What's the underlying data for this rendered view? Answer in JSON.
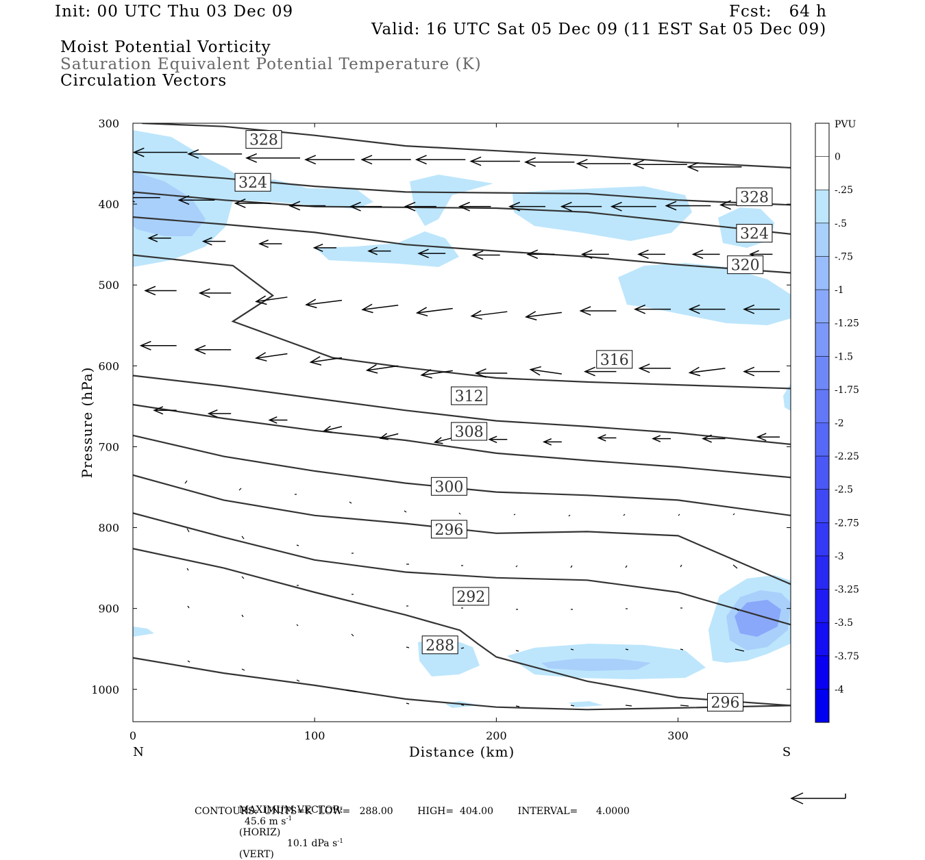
{
  "header": {
    "init": "Init: 00 UTC Thu 03 Dec 09",
    "fcst": "Fcst:   64 h",
    "valid": "Valid: 16 UTC Sat 05 Dec 09 (11 EST Sat 05 Dec 09)",
    "field1": "Moist Potential Vorticity",
    "field2": "Saturation Equivalent Potential Temperature (K)",
    "field3": "Circulation Vectors"
  },
  "chart_data": {
    "type": "cross-section",
    "xlabel": "Distance (km)",
    "ylabel": "Pressure (hPa)",
    "xlim": [
      0,
      362
    ],
    "ylim": [
      1040,
      300
    ],
    "x_ticks": [
      "0",
      "100",
      "200",
      "300"
    ],
    "y_ticks": [
      "300",
      "400",
      "500",
      "600",
      "700",
      "800",
      "900",
      "1000"
    ],
    "x_end_labels": {
      "left": "N",
      "right": "S"
    },
    "colorbar": {
      "title": "PVU",
      "levels": [
        "0",
        "-.25",
        "-.5",
        "-.75",
        "-1",
        "-1.25",
        "-1.5",
        "-1.75",
        "-2",
        "-2.25",
        "-2.5",
        "-2.75",
        "-3",
        "-3.25",
        "-3.5",
        "-3.75",
        "-4"
      ],
      "colors": [
        "#ffffff",
        "#ffffff",
        "#bde6fc",
        "#a9d0fb",
        "#99bdfa",
        "#8aa8fa",
        "#7c98f9",
        "#6f88f8",
        "#6378f7",
        "#5668f6",
        "#4a58f5",
        "#3e48f5",
        "#3339f4",
        "#2829f3",
        "#1e1bf3",
        "#140ef2",
        "#0a00f1",
        "#0000f0"
      ]
    },
    "contour_labels": [
      {
        "label": "328",
        "x": 72,
        "p": 320
      },
      {
        "label": "324",
        "x": 66,
        "p": 373
      },
      {
        "label": "328",
        "x": 342,
        "p": 391
      },
      {
        "label": "324",
        "x": 342,
        "p": 436
      },
      {
        "label": "320",
        "x": 337,
        "p": 475
      },
      {
        "label": "316",
        "x": 265,
        "p": 592
      },
      {
        "label": "312",
        "x": 185,
        "p": 637
      },
      {
        "label": "308",
        "x": 185,
        "p": 681
      },
      {
        "label": "300",
        "x": 174,
        "p": 749
      },
      {
        "label": "296",
        "x": 174,
        "p": 802
      },
      {
        "label": "292",
        "x": 186,
        "p": 885
      },
      {
        "label": "288",
        "x": 169,
        "p": 945
      },
      {
        "label": "296",
        "x": 326,
        "p": 1016
      }
    ],
    "contours": [
      [
        [
          5,
          300
        ],
        [
          50,
          304
        ],
        [
          100,
          315
        ],
        [
          150,
          328
        ],
        [
          200,
          334
        ],
        [
          250,
          340
        ],
        [
          300,
          348
        ],
        [
          362,
          355
        ]
      ],
      [
        [
          0,
          360
        ],
        [
          50,
          368
        ],
        [
          100,
          378
        ],
        [
          150,
          385
        ],
        [
          200,
          386
        ],
        [
          250,
          387
        ],
        [
          300,
          395
        ],
        [
          362,
          401
        ]
      ],
      [
        [
          0,
          385
        ],
        [
          50,
          395
        ],
        [
          100,
          403
        ],
        [
          150,
          404
        ],
        [
          200,
          405
        ],
        [
          250,
          410
        ],
        [
          300,
          422
        ],
        [
          362,
          437
        ]
      ],
      [
        [
          0,
          416
        ],
        [
          50,
          425
        ],
        [
          100,
          435
        ],
        [
          150,
          450
        ],
        [
          200,
          458
        ],
        [
          250,
          465
        ],
        [
          300,
          475
        ],
        [
          362,
          485
        ]
      ],
      [
        [
          0,
          463
        ],
        [
          55,
          476
        ],
        [
          77,
          513
        ],
        [
          55,
          545
        ],
        [
          110,
          590
        ],
        [
          150,
          602
        ],
        [
          200,
          615
        ],
        [
          250,
          620
        ],
        [
          362,
          628
        ]
      ],
      [
        [
          0,
          612
        ],
        [
          50,
          625
        ],
        [
          100,
          640
        ],
        [
          150,
          655
        ],
        [
          200,
          668
        ],
        [
          250,
          675
        ],
        [
          300,
          683
        ],
        [
          362,
          697
        ]
      ],
      [
        [
          0,
          648
        ],
        [
          50,
          665
        ],
        [
          100,
          680
        ],
        [
          150,
          692
        ],
        [
          200,
          708
        ],
        [
          250,
          717
        ],
        [
          300,
          725
        ],
        [
          362,
          738
        ]
      ],
      [
        [
          0,
          686
        ],
        [
          50,
          712
        ],
        [
          100,
          730
        ],
        [
          150,
          745
        ],
        [
          200,
          756
        ],
        [
          250,
          760
        ],
        [
          300,
          766
        ],
        [
          362,
          785
        ]
      ],
      [
        [
          0,
          735
        ],
        [
          50,
          766
        ],
        [
          100,
          785
        ],
        [
          150,
          795
        ],
        [
          200,
          807
        ],
        [
          250,
          805
        ],
        [
          300,
          810
        ],
        [
          362,
          870
        ]
      ],
      [
        [
          0,
          782
        ],
        [
          50,
          812
        ],
        [
          100,
          840
        ],
        [
          150,
          855
        ],
        [
          200,
          862
        ],
        [
          250,
          865
        ],
        [
          300,
          880
        ],
        [
          362,
          920
        ]
      ],
      [
        [
          0,
          826
        ],
        [
          50,
          850
        ],
        [
          100,
          880
        ],
        [
          150,
          908
        ],
        [
          180,
          927
        ],
        [
          190,
          944
        ],
        [
          200,
          960
        ],
        [
          250,
          990
        ],
        [
          300,
          1010
        ],
        [
          362,
          1020
        ]
      ],
      [
        [
          0,
          961
        ],
        [
          50,
          980
        ],
        [
          100,
          995
        ],
        [
          150,
          1012
        ],
        [
          200,
          1022
        ],
        [
          250,
          1025
        ],
        [
          300,
          1023
        ],
        [
          362,
          1020
        ]
      ]
    ],
    "vectors": [
      {
        "x": 0,
        "p": 335,
        "u": -12,
        "w": 0
      },
      {
        "x": 30,
        "p": 336,
        "u": -12,
        "w": 0
      },
      {
        "x": 60,
        "p": 338,
        "u": -12,
        "w": 0
      },
      {
        "x": 92,
        "p": 343,
        "u": -12,
        "w": 0
      },
      {
        "x": 122,
        "p": 345,
        "u": -11,
        "w": 0
      },
      {
        "x": 153,
        "p": 345,
        "u": -11,
        "w": 0
      },
      {
        "x": 183,
        "p": 345,
        "u": -11,
        "w": 0
      },
      {
        "x": 213,
        "p": 347,
        "u": -11,
        "w": 0
      },
      {
        "x": 243,
        "p": 348,
        "u": -11,
        "w": 0
      },
      {
        "x": 274,
        "p": 350,
        "u": -12,
        "w": 0
      },
      {
        "x": 305,
        "p": 351,
        "u": -12,
        "w": 0
      },
      {
        "x": 335,
        "p": 354,
        "u": -12,
        "w": 0
      },
      {
        "x": 15,
        "p": 392,
        "u": -8,
        "w": 0
      },
      {
        "x": 45,
        "p": 395,
        "u": -8,
        "w": 0
      },
      {
        "x": 76,
        "p": 399,
        "u": -8,
        "w": 0
      },
      {
        "x": 106,
        "p": 402,
        "u": -8,
        "w": 0
      },
      {
        "x": 137,
        "p": 403,
        "u": -7,
        "w": 0
      },
      {
        "x": 167,
        "p": 403,
        "u": -7,
        "w": 0
      },
      {
        "x": 197,
        "p": 403,
        "u": -7,
        "w": 0
      },
      {
        "x": 227,
        "p": 403,
        "u": -8,
        "w": 0
      },
      {
        "x": 258,
        "p": 403,
        "u": -9,
        "w": 0
      },
      {
        "x": 288,
        "p": 403,
        "u": -10,
        "w": 0
      },
      {
        "x": 318,
        "p": 402,
        "u": -10,
        "w": 0
      },
      {
        "x": 348,
        "p": 401,
        "u": -10,
        "w": 0
      },
      {
        "x": 21,
        "p": 442,
        "u": -5,
        "w": 0
      },
      {
        "x": 51,
        "p": 446,
        "u": -5,
        "w": 0
      },
      {
        "x": 82,
        "p": 449,
        "u": -5,
        "w": 0
      },
      {
        "x": 112,
        "p": 454,
        "u": -5,
        "w": 0
      },
      {
        "x": 142,
        "p": 458,
        "u": -5,
        "w": 0
      },
      {
        "x": 172,
        "p": 461,
        "u": -6,
        "w": 0
      },
      {
        "x": 202,
        "p": 463,
        "u": -6,
        "w": 0
      },
      {
        "x": 232,
        "p": 462,
        "u": -6,
        "w": 0
      },
      {
        "x": 262,
        "p": 462,
        "u": -6,
        "w": 0
      },
      {
        "x": 293,
        "p": 462,
        "u": -6,
        "w": 0
      },
      {
        "x": 323,
        "p": 462,
        "u": -6,
        "w": 0
      },
      {
        "x": 352,
        "p": 462,
        "u": -5,
        "w": 0
      },
      {
        "x": 24,
        "p": 507,
        "u": -7,
        "w": 0
      },
      {
        "x": 54,
        "p": 510,
        "u": -7,
        "w": 0
      },
      {
        "x": 85,
        "p": 515,
        "u": -7,
        "w": -1
      },
      {
        "x": 115,
        "p": 519,
        "u": -8,
        "w": -1
      },
      {
        "x": 146,
        "p": 525,
        "u": -8,
        "w": -1
      },
      {
        "x": 176,
        "p": 529,
        "u": -8,
        "w": -1
      },
      {
        "x": 206,
        "p": 533,
        "u": -8,
        "w": -1
      },
      {
        "x": 236,
        "p": 534,
        "u": -8,
        "w": -1
      },
      {
        "x": 266,
        "p": 532,
        "u": -8,
        "w": 0
      },
      {
        "x": 296,
        "p": 530,
        "u": -8,
        "w": 0
      },
      {
        "x": 326,
        "p": 530,
        "u": -8,
        "w": 0
      },
      {
        "x": 356,
        "p": 530,
        "u": -8,
        "w": 0
      },
      {
        "x": 24,
        "p": 575,
        "u": -8,
        "w": 0
      },
      {
        "x": 54,
        "p": 580,
        "u": -8,
        "w": 0
      },
      {
        "x": 85,
        "p": 585,
        "u": -7,
        "w": -1
      },
      {
        "x": 115,
        "p": 590,
        "u": -7,
        "w": -1
      },
      {
        "x": 146,
        "p": 600,
        "u": -7,
        "w": -1
      },
      {
        "x": 176,
        "p": 606,
        "u": -7,
        "w": -1
      },
      {
        "x": 206,
        "p": 609,
        "u": -7,
        "w": 0
      },
      {
        "x": 236,
        "p": 610,
        "u": -7,
        "w": 1
      },
      {
        "x": 266,
        "p": 607,
        "u": -7,
        "w": 0
      },
      {
        "x": 296,
        "p": 603,
        "u": -7,
        "w": 0
      },
      {
        "x": 326,
        "p": 603,
        "u": -8,
        "w": -1
      },
      {
        "x": 356,
        "p": 607,
        "u": -8,
        "w": 0
      },
      {
        "x": 24,
        "p": 655,
        "u": -5,
        "w": 0
      },
      {
        "x": 54,
        "p": 659,
        "u": -5,
        "w": 0
      },
      {
        "x": 85,
        "p": 667,
        "u": -4,
        "w": 0
      },
      {
        "x": 115,
        "p": 675,
        "u": -4,
        "w": -1
      },
      {
        "x": 146,
        "p": 684,
        "u": -4,
        "w": -1
      },
      {
        "x": 176,
        "p": 689,
        "u": -4,
        "w": -1
      },
      {
        "x": 206,
        "p": 691,
        "u": -4,
        "w": 0
      },
      {
        "x": 236,
        "p": 694,
        "u": -4,
        "w": 0
      },
      {
        "x": 266,
        "p": 689,
        "u": -4,
        "w": 0
      },
      {
        "x": 296,
        "p": 690,
        "u": -4,
        "w": 0
      },
      {
        "x": 326,
        "p": 690,
        "u": -5,
        "w": 0
      },
      {
        "x": 356,
        "p": 688,
        "u": -5,
        "w": 0
      }
    ],
    "footer": {
      "max_vector_label": "MAXIMUM VECTOR:",
      "horiz_value": "45.6 m s",
      "horiz_unit": "(HORIZ)",
      "vert_value": "10.1 dPa s",
      "vert_unit": "(VERT)",
      "exponent": "-1",
      "contours_line": "CONTOURS:  UNITS=K  LOW=   288.00        HIGH=  404.00        INTERVAL=      4.0000"
    }
  }
}
